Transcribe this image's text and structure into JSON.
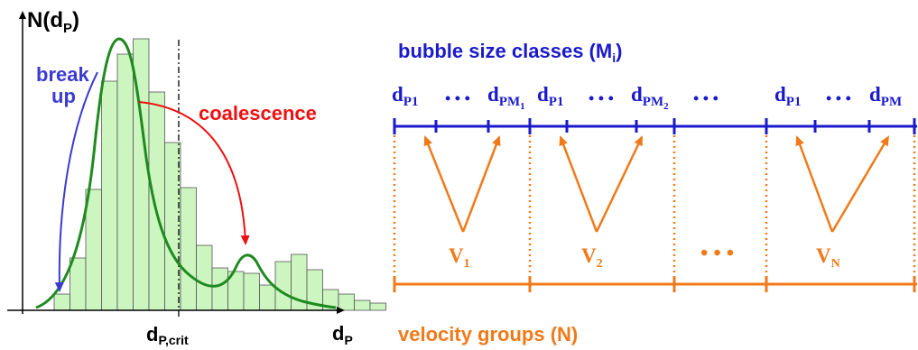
{
  "left_diagram": {
    "y_axis_label": {
      "main": "N(d",
      "sub": "P",
      "close": ")"
    },
    "x_axis_label": {
      "main": "d",
      "sub": "P"
    },
    "critical_label": {
      "main": "d",
      "sub": "P,crit"
    },
    "breakup_label": [
      "break",
      "up"
    ],
    "coalescence_label": "coalescence",
    "colors": {
      "histogram_fill": "#ccf5c0",
      "curve": "#1f8a1f",
      "breakup_arrow": "#3b3bd0",
      "coalescence_arrow": "#ee1111"
    }
  },
  "right_diagram": {
    "size_classes_title": {
      "main": "bubble size classes (M",
      "sub": "i",
      "close": ")"
    },
    "velocity_groups_title": "velocity groups (N)",
    "size_labels": [
      {
        "main": "d",
        "sub": "P1"
      },
      {
        "main": "d",
        "sub": "PM",
        "subsub": "1"
      },
      {
        "main": "d",
        "sub": "P1"
      },
      {
        "main": "d",
        "sub": "PM",
        "subsub": "2"
      },
      {
        "main": "d",
        "sub": "P1"
      },
      {
        "main": "d",
        "sub": "PM"
      }
    ],
    "dots": "• • •",
    "velocity_labels": [
      {
        "main": "V",
        "sub": "1"
      },
      {
        "main": "V",
        "sub": "2"
      },
      {
        "main": "V",
        "sub": "N"
      }
    ],
    "colors": {
      "size_classes": "#1a1acc",
      "velocity_groups": "#f07a1a"
    }
  }
}
